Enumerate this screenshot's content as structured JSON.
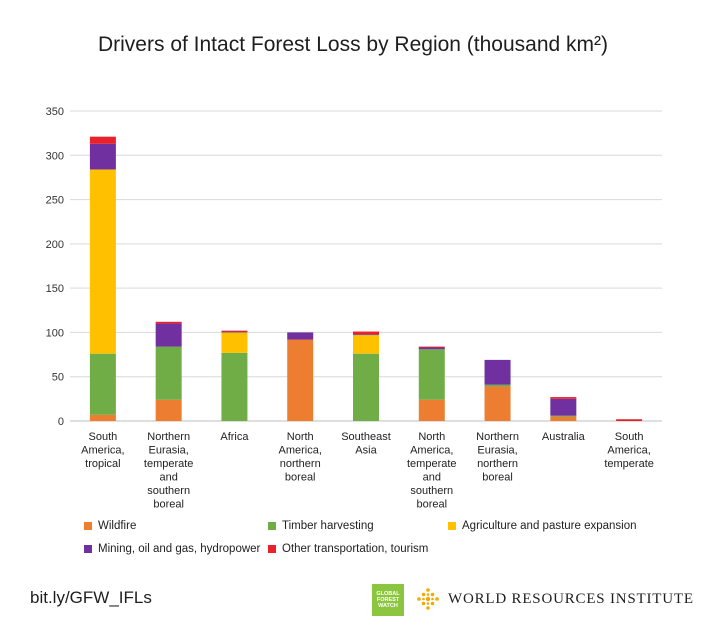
{
  "chart_data": {
    "type": "bar",
    "stacked": true,
    "title": "Drivers of Intact Forest Loss by Region (thousand km²)",
    "xlabel": "",
    "ylabel": "",
    "ylim": [
      0,
      350
    ],
    "yticks": [
      0,
      50,
      100,
      150,
      200,
      250,
      300,
      350
    ],
    "grid": true,
    "legend_position": "bottom",
    "categories": [
      [
        "South",
        "America,",
        "tropical"
      ],
      [
        "Northern",
        "Eurasia,",
        "temperate",
        "and",
        "southern",
        "boreal"
      ],
      [
        "Africa"
      ],
      [
        "North",
        "America,",
        "northern",
        "boreal"
      ],
      [
        "Southeast",
        "Asia"
      ],
      [
        "North",
        "America,",
        "temperate",
        "and",
        "southern",
        "boreal"
      ],
      [
        "Northern",
        "Eurasia,",
        "northern",
        "boreal"
      ],
      [
        "Australia"
      ],
      [
        "South",
        "America,",
        "temperate"
      ]
    ],
    "series": [
      {
        "name": "Wildfire",
        "color": "#ed7d31",
        "values": [
          7,
          24,
          0,
          92,
          0,
          24,
          39,
          5,
          0
        ]
      },
      {
        "name": "Timber harvesting",
        "color": "#70ad47",
        "values": [
          69,
          60,
          77,
          0,
          76,
          57,
          2,
          1,
          0
        ]
      },
      {
        "name": "Agriculture and pasture expansion",
        "color": "#ffc000",
        "values": [
          208,
          0,
          23,
          0,
          21,
          0,
          0,
          0,
          0
        ]
      },
      {
        "name": "Mining, oil and gas, hydropower",
        "color": "#7030a0",
        "values": [
          29,
          26,
          1,
          8,
          1,
          2,
          28,
          19,
          0
        ]
      },
      {
        "name": "Other transportation,  tourism",
        "color": "#e8212b",
        "values": [
          8,
          2,
          1,
          0,
          3,
          1,
          0,
          2,
          2
        ]
      }
    ]
  },
  "footer": {
    "source_link": "bit.ly/GFW_IFLs",
    "gfw_logo_lines": [
      "GLOBAL",
      "FOREST",
      "WATCH"
    ],
    "wri_name": "WORLD RESOURCES INSTITUTE"
  }
}
